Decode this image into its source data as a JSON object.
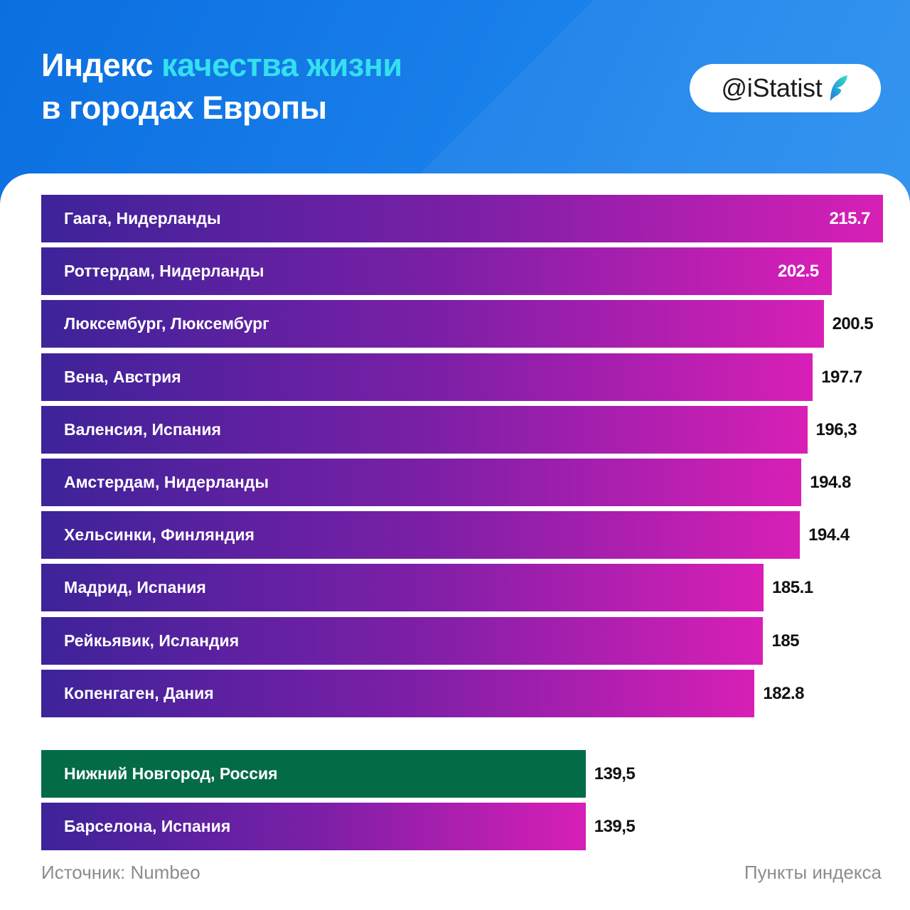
{
  "header": {
    "title_part1": "Индекс ",
    "title_accent": "качества жизни",
    "title_line2": "в городах Европы",
    "brand": "@iStatist",
    "brand_logo_icon": "leaf-icon"
  },
  "colors": {
    "bar_gradient_start": "#3d2399",
    "bar_gradient_end": "#d81fb6",
    "highlight_bar": "#046b47",
    "accent_title": "#34e0f0"
  },
  "chart_data": {
    "type": "bar",
    "orientation": "horizontal",
    "title": "Индекс качества жизни в городах Европы",
    "categories": [
      "Гаага, Нидерланды",
      "Роттердам, Нидерланды",
      "Люксембург, Люксембург",
      "Вена, Австрия",
      "Валенсия, Испания",
      "Амстердам, Нидерланды",
      "Хельсинки, Финляндия",
      "Мадрид, Испания",
      "Рейкьявик, Исландия",
      "Копенгаген, Дания",
      "Нижний Новгород, Россия",
      "Барселона, Испания"
    ],
    "values": [
      215.7,
      202.5,
      200.5,
      197.7,
      196.3,
      194.8,
      194.4,
      185.1,
      185,
      182.8,
      139.5,
      139.5
    ],
    "value_labels": [
      "215.7",
      "202.5",
      "200.5",
      "197.7",
      "196,3",
      "194.8",
      "194.4",
      "185.1",
      "185",
      "182.8",
      "139,5",
      "139,5"
    ],
    "highlight_index": 10,
    "xlabel": "Пункты индекса",
    "source": "Источник: Numbeo"
  }
}
